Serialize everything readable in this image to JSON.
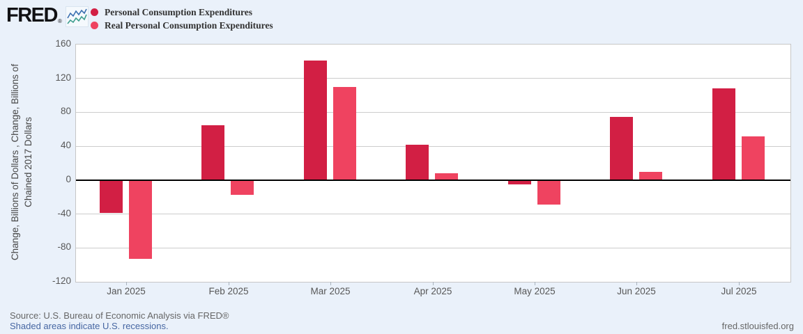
{
  "header": {
    "logo_text": "FRED",
    "logo_registered": "®"
  },
  "chart_data": {
    "type": "bar",
    "categories": [
      "Jan 2025",
      "Feb 2025",
      "Mar 2025",
      "Apr 2025",
      "May 2025",
      "Jun 2025",
      "Jul 2025"
    ],
    "series": [
      {
        "name": "Personal Consumption Expenditures",
        "color": "#d21f44",
        "values": [
          -39,
          65,
          141,
          42,
          -5,
          75,
          108
        ]
      },
      {
        "name": "Real Personal Consumption Expenditures",
        "color": "#ef4360",
        "values": [
          -93,
          -17,
          110,
          8,
          -29,
          10,
          52
        ]
      }
    ],
    "ylabel": "Change, Billions of Dollars , Change, Billions of Chained 2017 Dollars",
    "ylabel_lines": [
      "Change, Billions of Dollars , Change, Billions of",
      "Chained 2017 Dollars"
    ],
    "xlabel": "",
    "yticks": [
      160,
      120,
      80,
      40,
      0,
      -40,
      -80,
      -120
    ],
    "ylim": [
      -120,
      160
    ],
    "grid": true,
    "legend_position": "top-left"
  },
  "footer": {
    "source": "Source: U.S. Bureau of Economic Analysis via FRED®",
    "recessions_link": "Shaded areas indicate U.S. recessions.",
    "site_link": "fred.stlouisfed.org"
  },
  "colors": {
    "background": "#eaf1fa",
    "plot_background": "#ffffff",
    "plot_border": "#c6c6c6",
    "gridline": "#cccccc",
    "zero_line": "#000000",
    "link_blue": "#4666a2",
    "text_gray": "#666666",
    "sparkline_blue": "#3a6fb0",
    "sparkline_green": "#3f9e8f"
  }
}
